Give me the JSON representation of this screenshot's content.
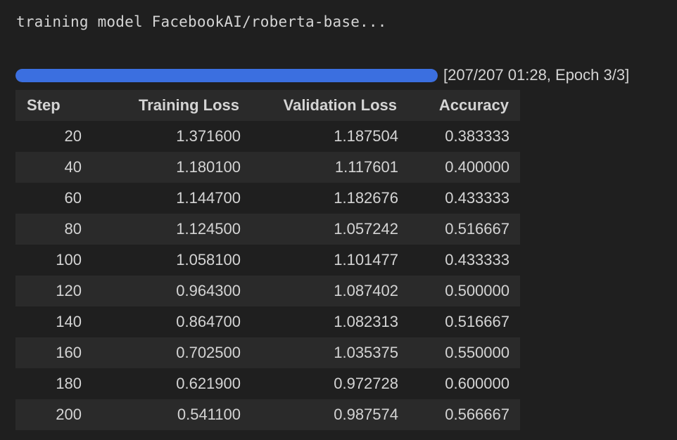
{
  "log": {
    "text": "training model FacebookAI/roberta-base..."
  },
  "progress": {
    "fraction": 1.0,
    "label": "[207/207 01:28, Epoch 3/3]",
    "color": "#3b6fe0"
  },
  "table": {
    "headers": [
      "Step",
      "Training Loss",
      "Validation Loss",
      "Accuracy"
    ],
    "rows": [
      [
        "20",
        "1.371600",
        "1.187504",
        "0.383333"
      ],
      [
        "40",
        "1.180100",
        "1.117601",
        "0.400000"
      ],
      [
        "60",
        "1.144700",
        "1.182676",
        "0.433333"
      ],
      [
        "80",
        "1.124500",
        "1.057242",
        "0.516667"
      ],
      [
        "100",
        "1.058100",
        "1.101477",
        "0.433333"
      ],
      [
        "120",
        "0.964300",
        "1.087402",
        "0.500000"
      ],
      [
        "140",
        "0.864700",
        "1.082313",
        "0.516667"
      ],
      [
        "160",
        "0.702500",
        "1.035375",
        "0.550000"
      ],
      [
        "180",
        "0.621900",
        "0.972728",
        "0.600000"
      ],
      [
        "200",
        "0.541100",
        "0.987574",
        "0.566667"
      ]
    ]
  }
}
